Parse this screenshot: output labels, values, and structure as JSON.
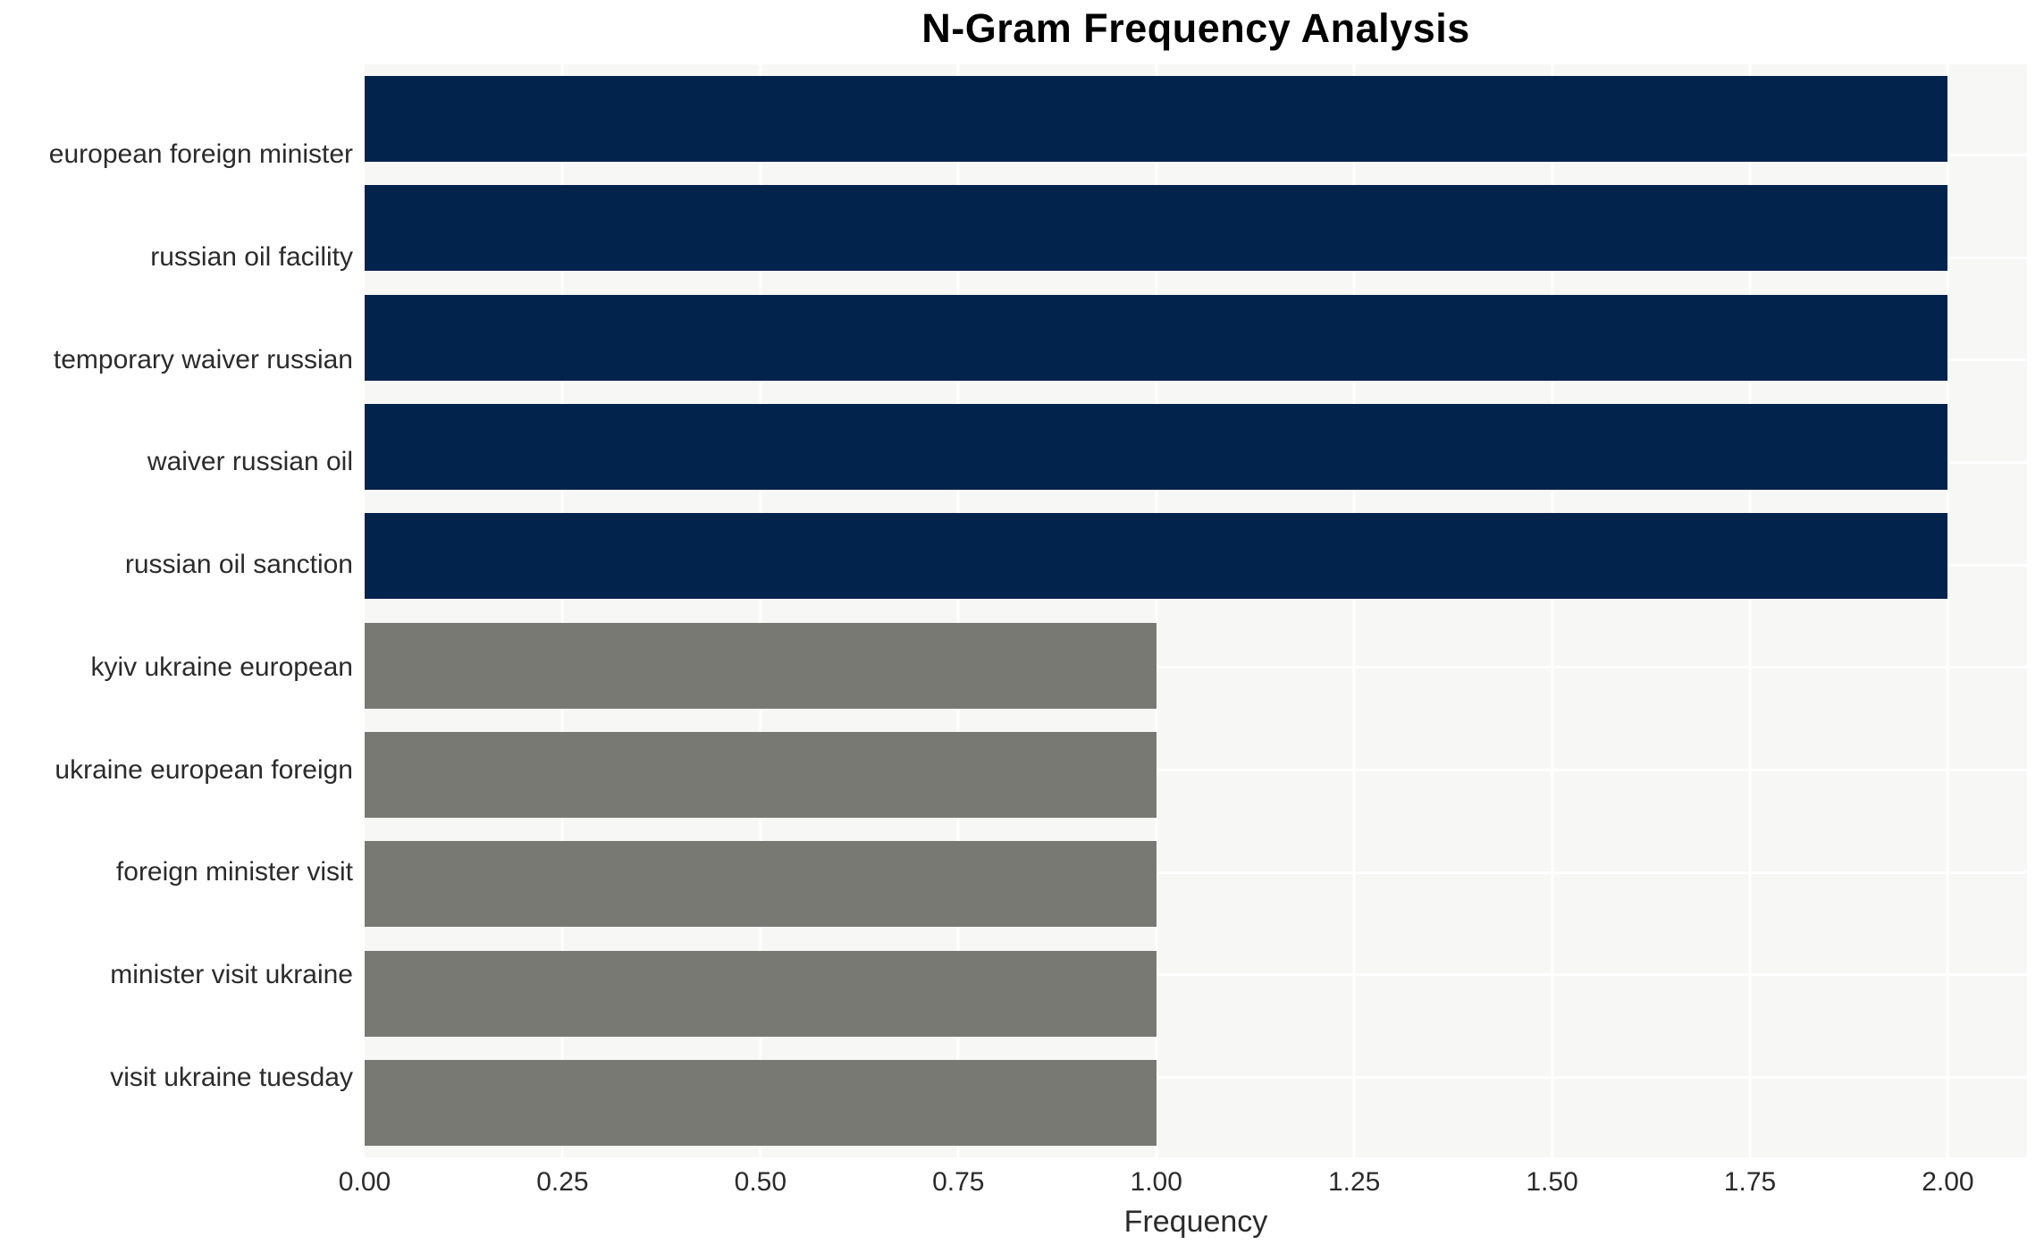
{
  "chart_data": {
    "type": "bar",
    "orientation": "horizontal",
    "title": "N-Gram Frequency Analysis",
    "xlabel": "Frequency",
    "ylabel": "",
    "categories": [
      "european foreign minister",
      "russian oil facility",
      "temporary waiver russian",
      "waiver russian oil",
      "russian oil sanction",
      "kyiv ukraine european",
      "ukraine european foreign",
      "foreign minister visit",
      "minister visit ukraine",
      "visit ukraine tuesday"
    ],
    "values": [
      2,
      2,
      2,
      2,
      2,
      1,
      1,
      1,
      1,
      1
    ],
    "xlim": [
      0,
      2.1
    ],
    "xticks": [
      0,
      0.25,
      0.5,
      0.75,
      1.0,
      1.25,
      1.5,
      1.75,
      2.0
    ],
    "xtick_labels": [
      "0.00",
      "0.25",
      "0.50",
      "0.75",
      "1.00",
      "1.25",
      "1.50",
      "1.75",
      "2.00"
    ],
    "grid": true,
    "legend": false,
    "colors": {
      "value_colors": {
        "2": "#02234c",
        "1": "#797974"
      },
      "plot_background": "#f7f7f6",
      "gridline": "#ffffff",
      "figure_background": "#ffffff",
      "title_color": "#000000",
      "tick_color": "#2b2b2b"
    }
  }
}
